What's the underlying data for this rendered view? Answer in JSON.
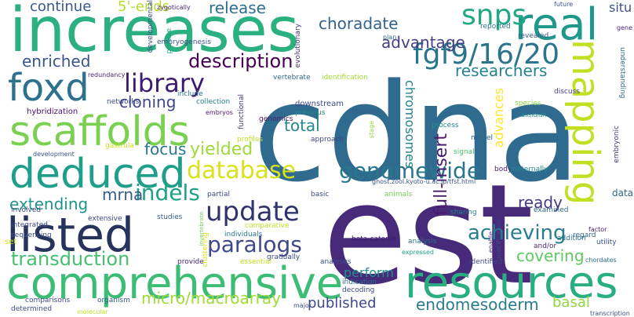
{
  "words": [
    {
      "text": "cdna",
      "color": "#2f6b8e"
    },
    {
      "text": "est",
      "color": "#472a7a"
    },
    {
      "text": "increases",
      "color": "#2bb07f"
    },
    {
      "text": "comprehensive",
      "color": "#3cbc75"
    },
    {
      "text": "resources",
      "color": "#29af7f"
    },
    {
      "text": "mapping",
      "color": "#c2df23"
    },
    {
      "text": "real",
      "color": "#1f988b"
    },
    {
      "text": "scaffolds",
      "color": "#7ad151"
    },
    {
      "text": "deduced",
      "color": "#1f9e89"
    },
    {
      "text": "listed",
      "color": "#26345d"
    },
    {
      "text": "foxd",
      "color": "#2d718e"
    },
    {
      "text": "snps",
      "color": "#22a884"
    },
    {
      "text": "fgf9/16/20",
      "color": "#2b748e"
    },
    {
      "text": "library",
      "color": "#3b1c6e"
    },
    {
      "text": "update",
      "color": "#30336e"
    },
    {
      "text": "genomewide",
      "color": "#2a768e"
    },
    {
      "text": "database",
      "color": "#d8e219"
    },
    {
      "text": "indels",
      "color": "#1fa187"
    },
    {
      "text": "paralogs",
      "color": "#3e4989"
    },
    {
      "text": "achieving",
      "color": "#287d8e"
    },
    {
      "text": "transduction",
      "color": "#46c06f"
    },
    {
      "text": "description",
      "color": "#440154"
    },
    {
      "text": "full-insert",
      "color": "#481b6d"
    },
    {
      "text": "advantage",
      "color": "#433e85"
    },
    {
      "text": "choradate",
      "color": "#33628d"
    },
    {
      "text": "researchers",
      "color": "#26828e"
    },
    {
      "text": "release",
      "color": "#2e6e8e"
    },
    {
      "text": "continue",
      "color": "#38588c"
    },
    {
      "text": "5'-ends",
      "color": "#b5de2b"
    },
    {
      "text": "enriched",
      "color": "#39568c"
    },
    {
      "text": "chromosomes",
      "color": "#25858e"
    },
    {
      "text": "advances",
      "color": "#fde725"
    },
    {
      "text": "yielded",
      "color": "#9fda3a"
    },
    {
      "text": "cloning",
      "color": "#3f4788"
    },
    {
      "text": "total",
      "color": "#24878e"
    },
    {
      "text": "focus",
      "color": "#2a788e"
    },
    {
      "text": "mrna",
      "color": "#365c8d"
    },
    {
      "text": "extending",
      "color": "#20938c"
    },
    {
      "text": "ready",
      "color": "#443a83"
    },
    {
      "text": "covering",
      "color": "#5ec962"
    },
    {
      "text": "perform",
      "color": "#21918c"
    },
    {
      "text": "micro/macroarray",
      "color": "#a0da39"
    },
    {
      "text": "endomesoderm",
      "color": "#287c8e"
    },
    {
      "text": "published",
      "color": "#3e4989"
    },
    {
      "text": "basal",
      "color": "#90d743"
    },
    {
      "text": "redundancy",
      "color": "#482878"
    },
    {
      "text": "embryogenesis",
      "color": "#3a538b"
    },
    {
      "text": "developmental",
      "color": "#3c508b"
    },
    {
      "text": "evolutionary",
      "color": "#46327e"
    },
    {
      "text": "zygotically",
      "color": "#482173"
    },
    {
      "text": "future",
      "color": "#3d4e8a"
    },
    {
      "text": "reported",
      "color": "#2c728e"
    },
    {
      "text": "revealed",
      "color": "#38588c"
    },
    {
      "text": "situ",
      "color": "#3b528b"
    },
    {
      "text": "gene",
      "color": "#481f70"
    },
    {
      "text": "precise",
      "color": "#20a386"
    },
    {
      "text": "plan",
      "color": "#31688e"
    },
    {
      "text": "hybridization",
      "color": "#4a0c6b"
    },
    {
      "text": "networks",
      "color": "#3f4889"
    },
    {
      "text": "collection",
      "color": "#25848e"
    },
    {
      "text": "include",
      "color": "#2c718e"
    },
    {
      "text": "vertebrate",
      "color": "#30678d"
    },
    {
      "text": "identification",
      "color": "#a2da37"
    },
    {
      "text": "downstream",
      "color": "#3e4a89"
    },
    {
      "text": "previous",
      "color": "#24878e"
    },
    {
      "text": "genomics",
      "color": "#481c6e"
    },
    {
      "text": "requires",
      "color": "#365d8d"
    },
    {
      "text": "stage",
      "color": "#90d743"
    },
    {
      "text": "process",
      "color": "#21908d"
    },
    {
      "text": "model",
      "color": "#31668e"
    },
    {
      "text": "signal",
      "color": "#4ac16d"
    },
    {
      "text": "species",
      "color": "#8bd646"
    },
    {
      "text": "discuss",
      "color": "#3f4788"
    },
    {
      "text": "understanding",
      "color": "#2e6f8e"
    },
    {
      "text": "data",
      "color": "#31678e"
    },
    {
      "text": "embryonic",
      "color": "#453882"
    },
    {
      "text": "assidian",
      "color": "#21918c"
    },
    {
      "text": "functional",
      "color": "#46307e"
    },
    {
      "text": "embryos",
      "color": "#48186a"
    },
    {
      "text": "gastrula",
      "color": "#c8e020"
    },
    {
      "text": "development",
      "color": "#3b528b"
    },
    {
      "text": "profiles",
      "color": "#c0df25"
    },
    {
      "text": "approach",
      "color": "#3f4788"
    },
    {
      "text": "ghost.zool.kyoto-u.ac.jp/tfst.html",
      "color": "#3b518b"
    },
    {
      "text": "body",
      "color": "#482475"
    },
    {
      "text": "maternally",
      "color": "#23898e"
    },
    {
      "text": "partial",
      "color": "#3e4989"
    },
    {
      "text": "basic",
      "color": "#3d4d8a"
    },
    {
      "text": "animals",
      "color": "#75d054"
    },
    {
      "text": "examined",
      "color": "#31688e"
    },
    {
      "text": "involved",
      "color": "#3b528b"
    },
    {
      "text": "extensive",
      "color": "#404387"
    },
    {
      "text": "studies",
      "color": "#365c8d"
    },
    {
      "text": "integrated",
      "color": "#3e4c8a"
    },
    {
      "text": "comparative",
      "color": "#c0df25"
    },
    {
      "text": "sharing",
      "color": "#287d8e"
    },
    {
      "text": "sequencing",
      "color": "#3c508b"
    },
    {
      "text": "individuals",
      "color": "#2a778e"
    },
    {
      "text": "beta-catenin",
      "color": "#3b1c6e"
    },
    {
      "text": "enable",
      "color": "#46327e"
    },
    {
      "text": "regard",
      "color": "#31688e"
    },
    {
      "text": "factor",
      "color": "#4a1c6d"
    },
    {
      "text": "addition",
      "color": "#2c738e"
    },
    {
      "text": "set",
      "color": "#c8e020"
    },
    {
      "text": "clustering",
      "color": "#d8e219"
    },
    {
      "text": "invertebrate",
      "color": "#73d056"
    },
    {
      "text": "gradually",
      "color": "#3f4788"
    },
    {
      "text": "analysis",
      "color": "#2c728e"
    },
    {
      "text": "specification",
      "color": "#3c4f8a"
    },
    {
      "text": "and/or",
      "color": "#472a7a"
    },
    {
      "text": "utility",
      "color": "#39568c"
    },
    {
      "text": "provide",
      "color": "#472c7a"
    },
    {
      "text": "essential",
      "color": "#c2df23"
    },
    {
      "text": "analyses",
      "color": "#3b528b"
    },
    {
      "text": "expressed",
      "color": "#1fa187"
    },
    {
      "text": "identified",
      "color": "#3e4989"
    },
    {
      "text": "chordates",
      "color": "#2d708e"
    },
    {
      "text": "indication",
      "color": "#2d708e"
    },
    {
      "text": "decoding",
      "color": "#3e4989"
    },
    {
      "text": "comparisons",
      "color": "#3e4989"
    },
    {
      "text": "organism",
      "color": "#365c8d"
    },
    {
      "text": "major",
      "color": "#3b528b"
    },
    {
      "text": "determined",
      "color": "#3e4989"
    },
    {
      "text": "molecular",
      "color": "#c0df25"
    },
    {
      "text": "transcription",
      "color": "#3b518b"
    }
  ]
}
